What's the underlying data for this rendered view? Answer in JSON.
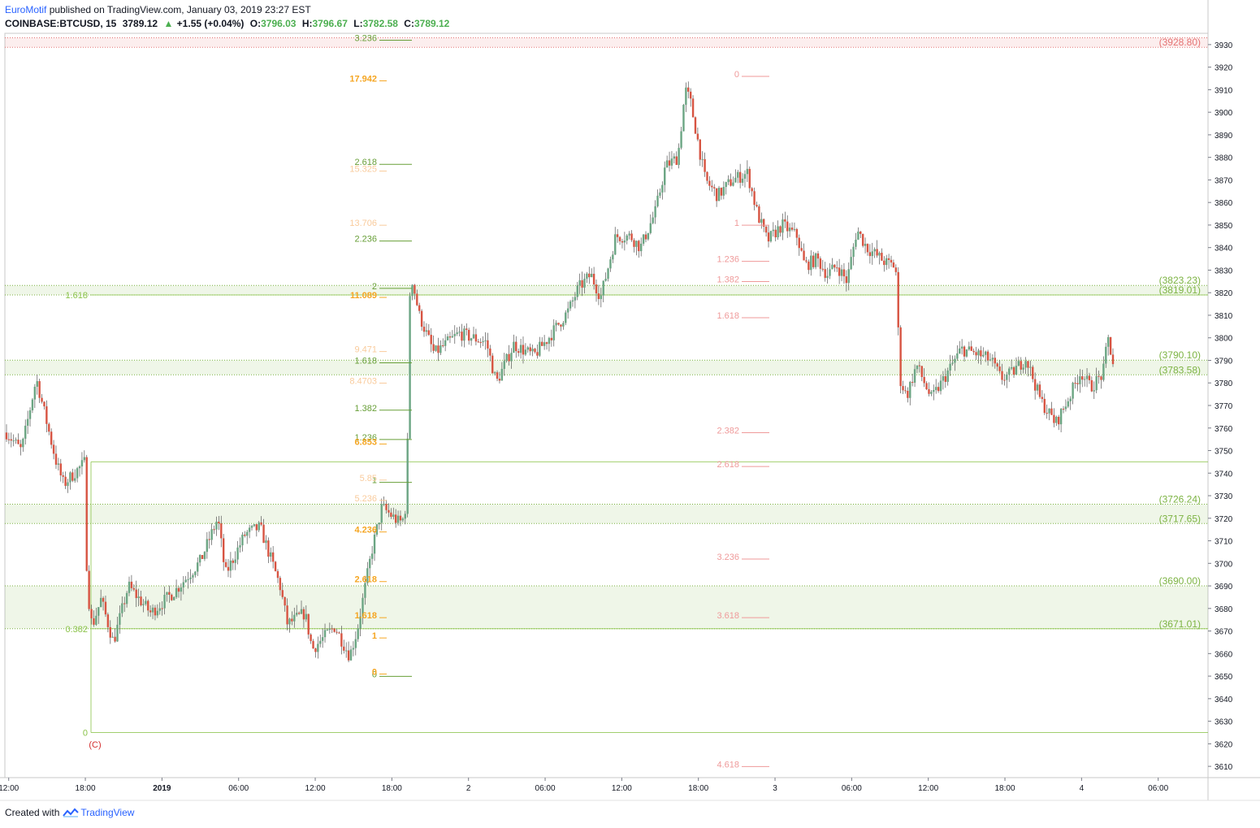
{
  "header": {
    "publisher": "EuroMotif",
    "published_text": "published on TradingView.com, January 03, 2019 23:27 EST",
    "symbol": "COINBASE:BTCUSD, 15",
    "last": "3789.12",
    "change_arrow": "▲",
    "change": "+1.55 (+0.04%)",
    "o_label": "O:",
    "o": "3796.03",
    "h_label": "H:",
    "h": "3796.67",
    "l_label": "L:",
    "l": "3782.58",
    "c_label": "C:",
    "c": "3789.12"
  },
  "footer": {
    "created_with": "Created with",
    "brand": "TradingView",
    "brand_icon": "tradingview-logo-icon"
  },
  "colors": {
    "up": "#6ba583",
    "down": "#d75442",
    "accent": "#2962ff",
    "level_line": "#7cb342",
    "resistance": "#f28b82"
  },
  "chart_data": {
    "type": "candlestick",
    "y_range": [
      3605,
      3935
    ],
    "y_ticks": [
      3610,
      3620,
      3630,
      3640,
      3650,
      3660,
      3670,
      3680,
      3690,
      3700,
      3710,
      3720,
      3730,
      3740,
      3750,
      3760,
      3770,
      3780,
      3790,
      3800,
      3810,
      3820,
      3830,
      3840,
      3850,
      3860,
      3870,
      3880,
      3890,
      3900,
      3910,
      3920,
      3930
    ],
    "x_labels": [
      "12:00",
      "18:00",
      "2019",
      "06:00",
      "12:00",
      "18:00",
      "2",
      "06:00",
      "12:00",
      "18:00",
      "3",
      "06:00",
      "12:00",
      "18:00",
      "4",
      "06:00"
    ],
    "x_label_slots": [
      0.5,
      1.5,
      2.5,
      3.5,
      4.5,
      5.5,
      6.5,
      7.5,
      8.5,
      9.5,
      10.5,
      11.5,
      12.5,
      13.5,
      14.5,
      15.5
    ],
    "x_slots_total": 15.7,
    "price_tags": [
      {
        "text": "(3928.80)",
        "price": 3928.8,
        "color": "#e57373"
      },
      {
        "text": "(3823.23)",
        "price": 3823.23,
        "color": "#7cb342"
      },
      {
        "text": "(3819.01)",
        "price": 3819.01,
        "color": "#7cb342"
      },
      {
        "text": "(3790.10)",
        "price": 3790.1,
        "color": "#7cb342"
      },
      {
        "text": "(3783.58)",
        "price": 3783.58,
        "color": "#7cb342"
      },
      {
        "text": "(3726.24)",
        "price": 3726.24,
        "color": "#7cb342"
      },
      {
        "text": "(3717.65)",
        "price": 3717.65,
        "color": "#7cb342"
      },
      {
        "text": "(3690.00)",
        "price": 3690.0,
        "color": "#7cb342"
      },
      {
        "text": "(3671.01)",
        "price": 3671.01,
        "color": "#7cb342"
      }
    ],
    "zones": [
      {
        "top": 3933,
        "bottom": 3928.8,
        "color": "#e57373"
      },
      {
        "top": 3823.23,
        "bottom": 3819.01,
        "color": "#7cb342"
      },
      {
        "top": 3790.1,
        "bottom": 3783.58,
        "color": "#7cb342"
      },
      {
        "top": 3726.24,
        "bottom": 3717.65,
        "color": "#7cb342"
      },
      {
        "top": 3690.0,
        "bottom": 3671.01,
        "color": "#7cb342"
      }
    ],
    "wave_label": "(C)",
    "fib_sets": [
      {
        "name": "",
        "color": "#8bc34a",
        "levels": [
          {
            "label": "1.618",
            "price": 3819
          },
          {
            "label": "0.382",
            "price": 3671
          },
          {
            "label": "0",
            "price": 3625
          }
        ]
      },
      {
        "name": "",
        "color": "#689f38",
        "levels": [
          {
            "label": "3.236",
            "price": 3933
          },
          {
            "label": "2.618",
            "price": 3878
          },
          {
            "label": "2.236",
            "price": 3844
          },
          {
            "label": "2",
            "price": 3823
          },
          {
            "label": "1.618",
            "price": 3790
          },
          {
            "label": "1.382",
            "price": 3769
          },
          {
            "label": "1.236",
            "price": 3756
          },
          {
            "label": "1",
            "price": 3737
          },
          {
            "label": "0",
            "price": 3651
          }
        ]
      },
      {
        "name": "",
        "color": "#f5a623",
        "levels": [
          {
            "label": "17.942",
            "price": 3915
          },
          {
            "label": "11.089",
            "price": 3819
          },
          {
            "label": "6.853",
            "price": 3754
          },
          {
            "label": "4.236",
            "price": 3715
          },
          {
            "label": "2.618",
            "price": 3693
          },
          {
            "label": "1.618",
            "price": 3677
          },
          {
            "label": "1",
            "price": 3668
          },
          {
            "label": "0",
            "price": 3652
          }
        ]
      },
      {
        "name": "",
        "color": "#f9cb9c",
        "levels": [
          {
            "label": "15.325",
            "price": 3875
          },
          {
            "label": "13.706",
            "price": 3851
          },
          {
            "label": "9.471",
            "price": 3795
          },
          {
            "label": "8.4703",
            "price": 3781
          },
          {
            "label": "5.85",
            "price": 3738
          },
          {
            "label": "5.236",
            "price": 3729
          }
        ]
      },
      {
        "name": "",
        "color": "#ef9a9a",
        "levels": [
          {
            "label": "0",
            "price": 3917
          },
          {
            "label": "1",
            "price": 3851
          },
          {
            "label": "1.236",
            "price": 3835
          },
          {
            "label": "1.382",
            "price": 3826
          },
          {
            "label": "1.618",
            "price": 3810
          },
          {
            "label": "2.382",
            "price": 3759
          },
          {
            "label": "2.618",
            "price": 3744
          },
          {
            "label": "3.236",
            "price": 3703
          },
          {
            "label": "3.618",
            "price": 3677
          },
          {
            "label": "4.618",
            "price": 3611
          }
        ]
      }
    ],
    "anchors": [
      {
        "t": 0.0,
        "p": 3758
      },
      {
        "t": 0.3,
        "p": 3750
      },
      {
        "t": 0.6,
        "p": 3782
      },
      {
        "t": 0.9,
        "p": 3754
      },
      {
        "t": 1.0,
        "p": 3745
      },
      {
        "t": 1.15,
        "p": 3735
      },
      {
        "t": 1.45,
        "p": 3742
      },
      {
        "t": 1.5,
        "p": 3743
      },
      {
        "t": 1.58,
        "p": 3745
      },
      {
        "t": 1.62,
        "p": 3690
      },
      {
        "t": 1.72,
        "p": 3672
      },
      {
        "t": 1.9,
        "p": 3684
      },
      {
        "t": 2.15,
        "p": 3665
      },
      {
        "t": 2.45,
        "p": 3690
      },
      {
        "t": 2.9,
        "p": 3678
      },
      {
        "t": 3.4,
        "p": 3688
      },
      {
        "t": 3.9,
        "p": 3701
      },
      {
        "t": 4.25,
        "p": 3720
      },
      {
        "t": 4.4,
        "p": 3695
      },
      {
        "t": 4.8,
        "p": 3713
      },
      {
        "t": 5.1,
        "p": 3716
      },
      {
        "t": 5.5,
        "p": 3690
      },
      {
        "t": 5.65,
        "p": 3673
      },
      {
        "t": 6.0,
        "p": 3678
      },
      {
        "t": 6.15,
        "p": 3662
      },
      {
        "t": 6.6,
        "p": 3672
      },
      {
        "t": 6.9,
        "p": 3659
      },
      {
        "t": 7.05,
        "p": 3670
      },
      {
        "t": 7.35,
        "p": 3706
      },
      {
        "t": 7.55,
        "p": 3725
      },
      {
        "t": 7.9,
        "p": 3718
      },
      {
        "t": 8.0,
        "p": 3720
      },
      {
        "t": 8.05,
        "p": 3732
      },
      {
        "t": 8.12,
        "p": 3830
      },
      {
        "t": 8.3,
        "p": 3810
      },
      {
        "t": 8.6,
        "p": 3793
      },
      {
        "t": 9.1,
        "p": 3802
      },
      {
        "t": 9.65,
        "p": 3798
      },
      {
        "t": 9.85,
        "p": 3780
      },
      {
        "t": 10.2,
        "p": 3797
      },
      {
        "t": 10.6,
        "p": 3792
      },
      {
        "t": 10.9,
        "p": 3800
      },
      {
        "t": 11.3,
        "p": 3812
      },
      {
        "t": 11.5,
        "p": 3822
      },
      {
        "t": 11.75,
        "p": 3828
      },
      {
        "t": 11.95,
        "p": 3818
      },
      {
        "t": 12.25,
        "p": 3845
      },
      {
        "t": 12.55,
        "p": 3845
      },
      {
        "t": 12.75,
        "p": 3840
      },
      {
        "t": 13.05,
        "p": 3856
      },
      {
        "t": 13.25,
        "p": 3876
      },
      {
        "t": 13.5,
        "p": 3880
      },
      {
        "t": 13.65,
        "p": 3910
      },
      {
        "t": 13.75,
        "p": 3905
      },
      {
        "t": 14.05,
        "p": 3870
      },
      {
        "t": 14.3,
        "p": 3863
      },
      {
        "t": 14.6,
        "p": 3870
      },
      {
        "t": 14.9,
        "p": 3873
      },
      {
        "t": 15.1,
        "p": 3855
      },
      {
        "t": 15.3,
        "p": 3843
      },
      {
        "t": 15.6,
        "p": 3850
      },
      {
        "t": 15.9,
        "p": 3845
      },
      {
        "t": 16.05,
        "p": 3832
      },
      {
        "t": 16.3,
        "p": 3835
      },
      {
        "t": 16.5,
        "p": 3828
      },
      {
        "t": 16.7,
        "p": 3832
      },
      {
        "t": 16.9,
        "p": 3825
      },
      {
        "t": 17.1,
        "p": 3848
      },
      {
        "t": 17.3,
        "p": 3840
      },
      {
        "t": 17.7,
        "p": 3833
      },
      {
        "t": 17.85,
        "p": 3832
      },
      {
        "t": 17.9,
        "p": 3828
      },
      {
        "t": 17.96,
        "p": 3782
      },
      {
        "t": 18.1,
        "p": 3774
      },
      {
        "t": 18.3,
        "p": 3788
      },
      {
        "t": 18.6,
        "p": 3773
      },
      {
        "t": 18.8,
        "p": 3780
      },
      {
        "t": 19.2,
        "p": 3795
      },
      {
        "t": 19.5,
        "p": 3793
      },
      {
        "t": 19.8,
        "p": 3790
      },
      {
        "t": 20.0,
        "p": 3782
      },
      {
        "t": 20.2,
        "p": 3784
      },
      {
        "t": 20.5,
        "p": 3791
      },
      {
        "t": 20.8,
        "p": 3772
      },
      {
        "t": 21.1,
        "p": 3762
      },
      {
        "t": 21.4,
        "p": 3775
      },
      {
        "t": 21.6,
        "p": 3785
      },
      {
        "t": 21.8,
        "p": 3778
      },
      {
        "t": 22.05,
        "p": 3784
      },
      {
        "t": 22.15,
        "p": 3800
      },
      {
        "t": 22.25,
        "p": 3789
      }
    ],
    "anchor_span": [
      0.0,
      22.25
    ],
    "plot_x_slot_at_start": -0.7,
    "plot_x_slot_at_end": 14.3
  }
}
